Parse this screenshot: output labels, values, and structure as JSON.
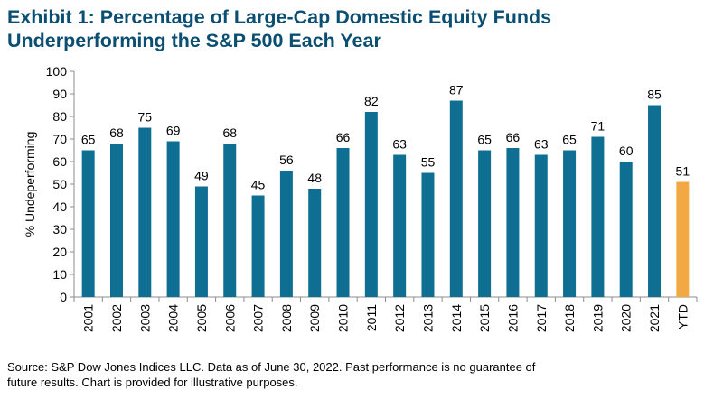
{
  "title_line1": "Exhibit 1: Percentage of Large-Cap Domestic Equity Funds",
  "title_line2": "Underperforming the S&P 500 Each Year",
  "source_line1": "Source: S&P Dow Jones Indices LLC.  Data as of June 30, 2022.  Past performance is no guarantee of",
  "source_line2": "future results.  Chart is provided for illustrative purposes.",
  "colors": {
    "bar": "#0f6f92",
    "highlight": "#f2a944",
    "title": "#0a4f72"
  },
  "chart_data": {
    "type": "bar",
    "title": "Exhibit 1: Percentage of Large-Cap Domestic Equity Funds Underperforming the S&P 500 Each Year",
    "xlabel": "",
    "ylabel": "% Undeperforming",
    "ylim": [
      0,
      100
    ],
    "yticks": [
      0,
      10,
      20,
      30,
      40,
      50,
      60,
      70,
      80,
      90,
      100
    ],
    "grid": false,
    "categories": [
      "2001",
      "2002",
      "2003",
      "2004",
      "2005",
      "2006",
      "2007",
      "2008",
      "2009",
      "2010",
      "2011",
      "2012",
      "2013",
      "2014",
      "2015",
      "2016",
      "2017",
      "2018",
      "2019",
      "2020",
      "2021",
      "YTD"
    ],
    "values": [
      65,
      68,
      75,
      69,
      49,
      68,
      45,
      56,
      48,
      66,
      82,
      63,
      55,
      87,
      65,
      66,
      63,
      65,
      71,
      60,
      85,
      51
    ],
    "highlight_category": "YTD"
  }
}
